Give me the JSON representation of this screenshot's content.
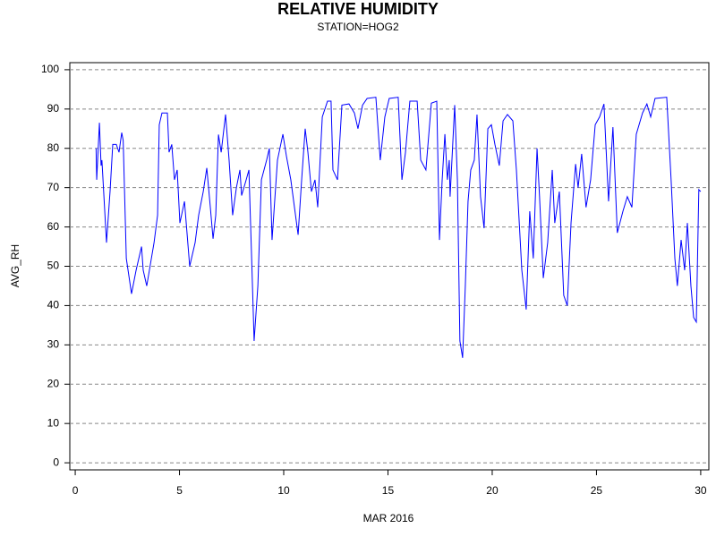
{
  "chart_data": {
    "type": "line",
    "title": "RELATIVE HUMIDITY",
    "subtitle": "STATION=HOG2",
    "x_label": "MAR 2016",
    "y_label": "AVG_RH",
    "x": [
      1.0,
      1.03,
      1.16,
      1.24,
      1.28,
      1.5,
      1.67,
      1.8,
      1.97,
      2.1,
      2.23,
      2.3,
      2.45,
      2.7,
      2.92,
      3.18,
      3.26,
      3.43,
      3.78,
      3.95,
      4.03,
      4.16,
      4.42,
      4.5,
      4.63,
      4.76,
      4.89,
      5.02,
      5.24,
      5.49,
      5.75,
      5.92,
      6.14,
      6.31,
      6.48,
      6.61,
      6.74,
      6.87,
      7.0,
      7.21,
      7.38,
      7.55,
      7.73,
      7.9,
      7.98,
      8.2,
      8.33,
      8.45,
      8.58,
      8.76,
      8.93,
      9.18,
      9.31,
      9.44,
      9.7,
      9.96,
      10.13,
      10.34,
      10.69,
      10.86,
      11.03,
      11.16,
      11.33,
      11.5,
      11.63,
      11.85,
      12.1,
      12.27,
      12.36,
      12.58,
      12.79,
      13.13,
      13.39,
      13.56,
      13.78,
      14.0,
      14.42,
      14.63,
      14.85,
      15.06,
      15.49,
      15.67,
      15.84,
      16.05,
      16.4,
      16.57,
      16.82,
      17.08,
      17.34,
      17.47,
      17.6,
      17.73,
      17.85,
      17.94,
      17.98,
      18.2,
      18.33,
      18.45,
      18.58,
      18.71,
      18.84,
      18.97,
      19.14,
      19.27,
      19.44,
      19.61,
      19.79,
      19.96,
      20.13,
      20.34,
      20.52,
      20.73,
      20.99,
      21.16,
      21.42,
      21.63,
      21.8,
      21.97,
      22.15,
      22.27,
      22.45,
      22.66,
      22.88,
      23.0,
      23.22,
      23.43,
      23.6,
      23.78,
      24.0,
      24.12,
      24.29,
      24.5,
      24.72,
      24.94,
      25.15,
      25.36,
      25.58,
      25.79,
      26.0,
      26.27,
      26.48,
      26.7,
      26.91,
      27.21,
      27.42,
      27.6,
      27.81,
      28.37,
      28.58,
      28.76,
      28.88,
      29.06,
      29.23,
      29.36,
      29.53,
      29.66,
      29.79,
      29.91,
      30.0
    ],
    "series": [
      {
        "name": "AVG_RH",
        "color": "#0000ff",
        "values": [
          80,
          72,
          86.5,
          75.6,
          77,
          56,
          69,
          81,
          81,
          79,
          84,
          82,
          52,
          43,
          49,
          55,
          49,
          45,
          56,
          63,
          86,
          89,
          89,
          79,
          81,
          72,
          74.5,
          61,
          66.5,
          50,
          56,
          63,
          69,
          75,
          65,
          57,
          63,
          83.5,
          79,
          88.6,
          77,
          63,
          70,
          74.5,
          68,
          72,
          74.5,
          54,
          31,
          45,
          72,
          77,
          80,
          56.7,
          77,
          83.6,
          78,
          72,
          58,
          72,
          85,
          79,
          69,
          72,
          65,
          88,
          92,
          92,
          74.5,
          72,
          91,
          91.3,
          89,
          85,
          91,
          92.7,
          93,
          77,
          88,
          92.7,
          93,
          72,
          79,
          92,
          92,
          77,
          74.5,
          91.5,
          92,
          56.7,
          72,
          83.6,
          72,
          77,
          67.7,
          91,
          72,
          31,
          26.7,
          45,
          66.5,
          74.5,
          77,
          88.6,
          67.7,
          59.7,
          85,
          86,
          81,
          75.6,
          87,
          88.6,
          87,
          74.5,
          49,
          39,
          64,
          52,
          80,
          67.7,
          47,
          56,
          74.5,
          61,
          69,
          42.6,
          40,
          61,
          76,
          70,
          78.6,
          65,
          72,
          86,
          88,
          91.3,
          66.5,
          85.4,
          58.5,
          64,
          67.7,
          65,
          83.6,
          89,
          91.3,
          88,
          92.7,
          93,
          72,
          52,
          45,
          56.7,
          49,
          61,
          45,
          37,
          35.8,
          69.5,
          69
        ]
      }
    ],
    "xlim": [
      -0.26,
      30.39
    ],
    "xticks": [
      0,
      5,
      10,
      15,
      20,
      25,
      30
    ],
    "ylim": [
      -1.8,
      101.8
    ],
    "yticks": [
      0,
      10,
      20,
      30,
      40,
      50,
      60,
      70,
      80,
      90,
      100
    ],
    "grid": true
  }
}
